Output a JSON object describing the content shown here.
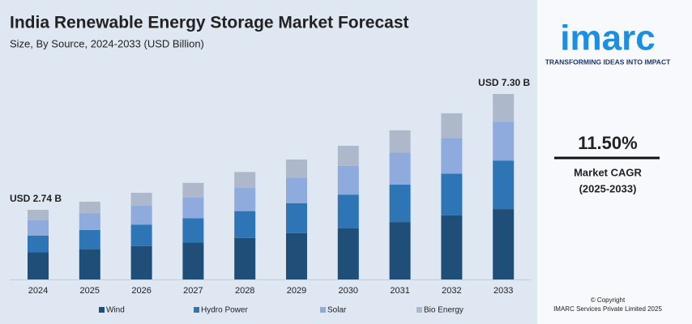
{
  "chart_data": {
    "type": "stacked_bar",
    "title": "India Renewable Energy Storage Market Forecast",
    "subtitle": "Size, By Source, 2024-2033 (USD Billion)",
    "categories": [
      "2024",
      "2025",
      "2026",
      "2027",
      "2028",
      "2029",
      "2030",
      "2031",
      "2032",
      "2033"
    ],
    "series": [
      {
        "name": "Wind",
        "color": "#1f4e79",
        "values": [
          1.07,
          1.18,
          1.31,
          1.46,
          1.63,
          1.82,
          2.02,
          2.26,
          2.52,
          2.77
        ]
      },
      {
        "name": "Hydro Power",
        "color": "#2e75b6",
        "values": [
          0.66,
          0.77,
          0.85,
          0.95,
          1.06,
          1.18,
          1.32,
          1.47,
          1.64,
          1.91
        ]
      },
      {
        "name": "Solar",
        "color": "#8faadc",
        "values": [
          0.6,
          0.66,
          0.74,
          0.82,
          0.91,
          1.01,
          1.13,
          1.26,
          1.4,
          1.53
        ]
      },
      {
        "name": "Bio Energy",
        "color": "#adb9ca",
        "values": [
          0.41,
          0.45,
          0.51,
          0.57,
          0.63,
          0.71,
          0.79,
          0.88,
          0.98,
          1.09
        ]
      }
    ],
    "annotations": [
      "USD 2.74 B",
      "USD 7.30 B"
    ],
    "legend": "bottom"
  },
  "side_panel": {
    "logo": "imarc",
    "tagline": "TRANSFORMING IDEAS INTO IMPACT",
    "cagr": "11.50%",
    "cagr_label": "Market CAGR",
    "cagr_period": "(2025-2033)",
    "copyright": "© Copyright",
    "company": "IMARC Services Private Limited 2025"
  }
}
